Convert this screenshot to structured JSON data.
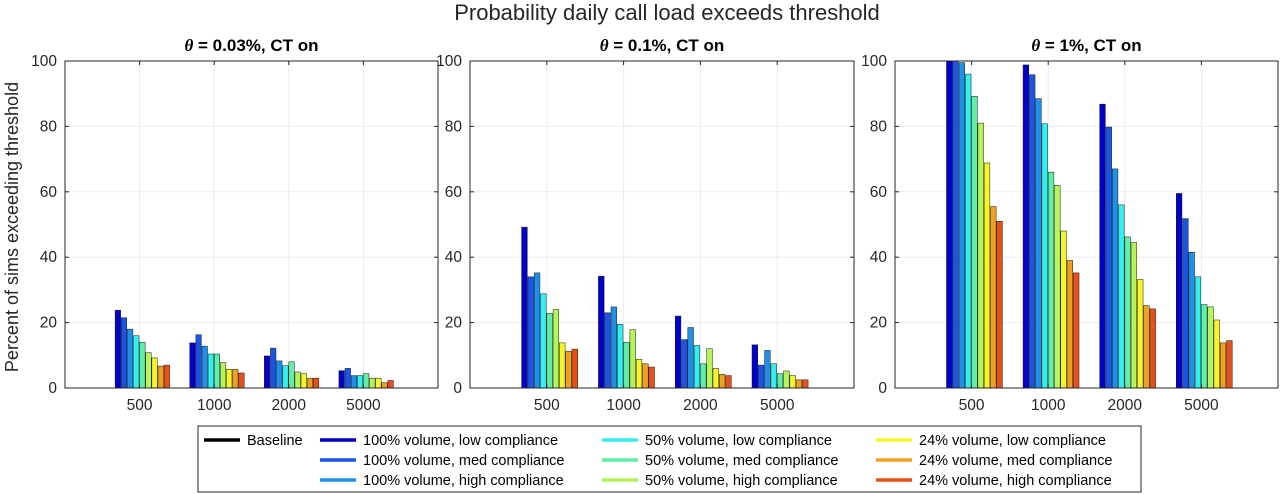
{
  "suptitle": "Probability daily call load exceeds threshold",
  "ylabel": "Percent of sims exceeding threshold",
  "legend": [
    {
      "label": "Baseline",
      "color": "#000000"
    },
    {
      "label": "100% volume, low compliance",
      "color": "#0000c8"
    },
    {
      "label": "100% volume, med compliance",
      "color": "#1a55e6"
    },
    {
      "label": "100% volume, high compliance",
      "color": "#1e90ea"
    },
    {
      "label": "50% volume, low compliance",
      "color": "#33f0f0"
    },
    {
      "label": "50% volume, med compliance",
      "color": "#5ef0a8"
    },
    {
      "label": "50% volume, high compliance",
      "color": "#b6f55a"
    },
    {
      "label": "24% volume, low compliance",
      "color": "#f7f52a"
    },
    {
      "label": "24% volume, med compliance",
      "color": "#f0a020"
    },
    {
      "label": "24% volume, high compliance",
      "color": "#e8501a"
    }
  ],
  "chart_data": [
    {
      "type": "bar",
      "title_prefix": "θ",
      "title": " = 0.03%, CT on",
      "categories": [
        "500",
        "1000",
        "2000",
        "5000"
      ],
      "ylim": [
        0,
        100
      ],
      "yticks": [
        0,
        20,
        40,
        60,
        80,
        100
      ],
      "grid": true,
      "series": [
        {
          "name": "Baseline",
          "values": [
            0,
            0,
            0,
            0
          ]
        },
        {
          "name": "100% volume, low compliance",
          "values": [
            23.8,
            13.8,
            9.8,
            5.3
          ]
        },
        {
          "name": "100% volume, med compliance",
          "values": [
            21.5,
            16.3,
            12.2,
            6.0
          ]
        },
        {
          "name": "100% volume, high compliance",
          "values": [
            18.0,
            12.8,
            8.3,
            3.8
          ]
        },
        {
          "name": "50% volume, low compliance",
          "values": [
            16.0,
            10.4,
            6.8,
            3.8
          ]
        },
        {
          "name": "50% volume, med compliance",
          "values": [
            14.0,
            10.4,
            8.0,
            4.4
          ]
        },
        {
          "name": "50% volume, high compliance",
          "values": [
            10.8,
            7.8,
            4.9,
            3.0
          ]
        },
        {
          "name": "24% volume, low compliance",
          "values": [
            9.2,
            5.7,
            4.4,
            3.0
          ]
        },
        {
          "name": "24% volume, med compliance",
          "values": [
            6.7,
            5.7,
            3.0,
            1.6
          ]
        },
        {
          "name": "24% volume, high compliance",
          "values": [
            7.0,
            4.6,
            3.0,
            2.3
          ]
        }
      ]
    },
    {
      "type": "bar",
      "title_prefix": "θ",
      "title": " = 0.1%, CT on",
      "categories": [
        "500",
        "1000",
        "2000",
        "5000"
      ],
      "ylim": [
        0,
        100
      ],
      "yticks": [
        0,
        20,
        40,
        60,
        80,
        100
      ],
      "grid": true,
      "series": [
        {
          "name": "Baseline",
          "values": [
            0,
            0,
            0,
            0
          ]
        },
        {
          "name": "100% volume, low compliance",
          "values": [
            49.2,
            34.2,
            22.0,
            13.2
          ]
        },
        {
          "name": "100% volume, med compliance",
          "values": [
            34.0,
            23.0,
            14.8,
            7.0
          ]
        },
        {
          "name": "100% volume, high compliance",
          "values": [
            35.2,
            24.8,
            18.5,
            11.5
          ]
        },
        {
          "name": "50% volume, low compliance",
          "values": [
            28.8,
            19.5,
            13.0,
            7.4
          ]
        },
        {
          "name": "50% volume, med compliance",
          "values": [
            22.8,
            14.0,
            7.4,
            4.4
          ]
        },
        {
          "name": "50% volume, high compliance",
          "values": [
            24.0,
            17.8,
            12.0,
            5.2
          ]
        },
        {
          "name": "24% volume, low compliance",
          "values": [
            13.8,
            8.8,
            6.0,
            3.8
          ]
        },
        {
          "name": "24% volume, med compliance",
          "values": [
            11.2,
            7.4,
            4.2,
            2.5
          ]
        },
        {
          "name": "24% volume, high compliance",
          "values": [
            11.9,
            6.4,
            3.8,
            2.5
          ]
        }
      ]
    },
    {
      "type": "bar",
      "title_prefix": "θ",
      "title": " = 1%, CT on",
      "categories": [
        "500",
        "1000",
        "2000",
        "5000"
      ],
      "ylim": [
        0,
        100
      ],
      "yticks": [
        0,
        20,
        40,
        60,
        80,
        100
      ],
      "grid": true,
      "series": [
        {
          "name": "Baseline",
          "values": [
            0,
            0,
            0,
            0
          ]
        },
        {
          "name": "100% volume, low compliance",
          "values": [
            100,
            98.8,
            86.8,
            59.5
          ]
        },
        {
          "name": "100% volume, med compliance",
          "values": [
            100,
            95.8,
            79.8,
            51.8
          ]
        },
        {
          "name": "100% volume, high compliance",
          "values": [
            99.5,
            88.5,
            67.0,
            41.5
          ]
        },
        {
          "name": "50% volume, low compliance",
          "values": [
            96.0,
            80.8,
            56.0,
            34.0
          ]
        },
        {
          "name": "50% volume, med compliance",
          "values": [
            89.2,
            66.0,
            46.2,
            25.5
          ]
        },
        {
          "name": "50% volume, high compliance",
          "values": [
            81.0,
            62.0,
            44.5,
            24.8
          ]
        },
        {
          "name": "24% volume, low compliance",
          "values": [
            68.8,
            48.0,
            33.2,
            20.8
          ]
        },
        {
          "name": "24% volume, med compliance",
          "values": [
            55.5,
            39.0,
            25.2,
            13.8
          ]
        },
        {
          "name": "24% volume, high compliance",
          "values": [
            51.0,
            35.2,
            24.2,
            14.5
          ]
        }
      ]
    }
  ]
}
